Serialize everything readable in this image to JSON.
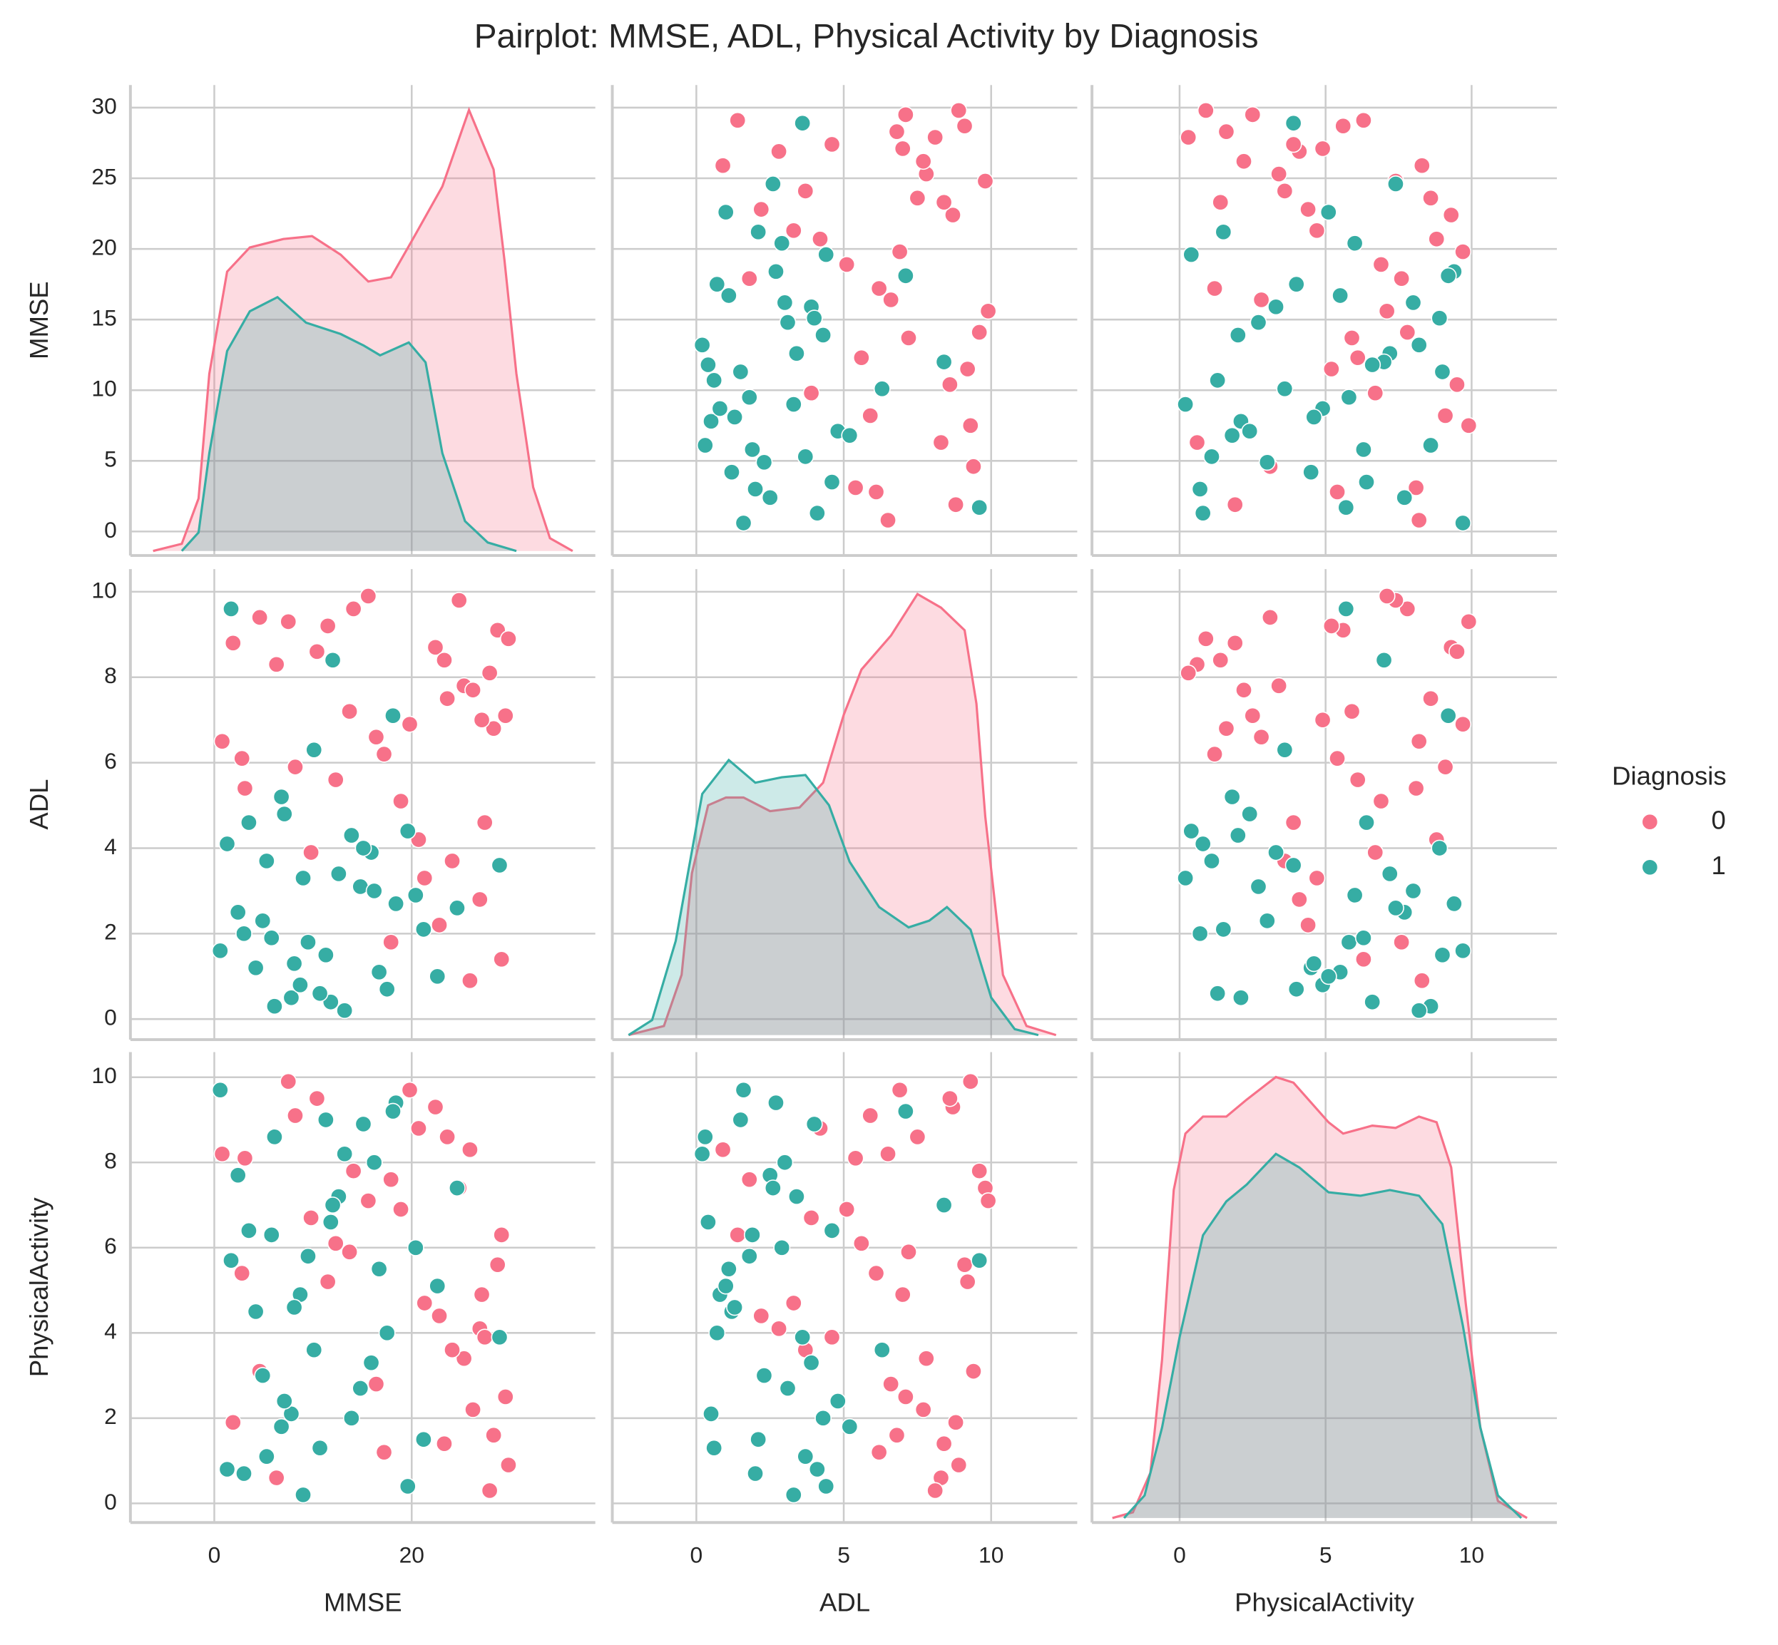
{
  "chart_data": {
    "type": "pairplot",
    "title": "Pairplot: MMSE, ADL, Physical Activity by Diagnosis",
    "grid": true,
    "legend": "right",
    "hue": {
      "title": "Diagnosis",
      "levels": [
        0,
        1
      ],
      "colors": [
        "#f77189",
        "#36ada4"
      ],
      "values": [
        0,
        0,
        0,
        0,
        0,
        0,
        0,
        0,
        0,
        0,
        0,
        0,
        0,
        0,
        0,
        0,
        0,
        0,
        0,
        0,
        0,
        0,
        0,
        0,
        0,
        0,
        0,
        0,
        0,
        0,
        0,
        0,
        0,
        0,
        0,
        0,
        0,
        0,
        0,
        0,
        1,
        1,
        1,
        1,
        1,
        1,
        1,
        1,
        1,
        1,
        1,
        1,
        1,
        1,
        1,
        1,
        1,
        1,
        1,
        1,
        1,
        1,
        1,
        1,
        1,
        1,
        1,
        1,
        1,
        1,
        1,
        1,
        1,
        1,
        1,
        1,
        1,
        1,
        1,
        1
      ]
    },
    "vars": [
      {
        "label": "MMSE",
        "xlim": [
          -8.5,
          38.6
        ],
        "xticks": [
          0,
          20
        ],
        "ylim": [
          -1.7,
          31.6
        ],
        "yticks": [
          0,
          5,
          10,
          15,
          20,
          25,
          30
        ],
        "values": [
          25.3,
          3.1,
          28.7,
          17.2,
          22.4,
          9.8,
          29.5,
          14.1,
          26.9,
          6.3,
          19.8,
          27.4,
          11.5,
          23.6,
          1.9,
          29.1,
          16.4,
          24.8,
          8.2,
          21.3,
          27.9,
          13.7,
          25.9,
          4.6,
          18.9,
          28.3,
          10.4,
          22.8,
          15.6,
          26.2,
          2.8,
          20.7,
          29.8,
          12.3,
          24.1,
          7.5,
          27.1,
          17.9,
          23.3,
          0.8,
          4.2,
          12.6,
          7.8,
          18.4,
          1.3,
          9.5,
          15.9,
          6.1,
          21.2,
          3.5,
          11.3,
          14.8,
          8.7,
          19.6,
          2.4,
          10.1,
          16.7,
          5.3,
          13.2,
          20.4,
          7.1,
          0.6,
          17.5,
          9.0,
          12.0,
          4.9,
          22.6,
          15.1,
          6.8,
          11.8,
          28.9,
          3.0,
          18.1,
          8.1,
          13.9,
          24.6,
          1.7,
          10.7,
          16.2,
          5.8
        ],
        "kde": [
          {
            "x": [
              -6.2,
              -3.3,
              -1.6,
              -0.5,
              1.3,
              3.6,
              7,
              9.9,
              12.8,
              15.6,
              17.9,
              20.2,
              23.1,
              25.8,
              28.3,
              29.4,
              30.6,
              32.3,
              34,
              36.3
            ],
            "density": [
              0,
              0.0005,
              0.0037,
              0.0125,
              0.0197,
              0.0214,
              0.022,
              0.0222,
              0.0209,
              0.019,
              0.0193,
              0.0221,
              0.0257,
              0.0311,
              0.0269,
              0.0205,
              0.0125,
              0.0045,
              0.0009,
              0
            ]
          },
          {
            "x": [
              -3.3,
              -1.6,
              -0.5,
              1.3,
              3.6,
              6.4,
              9.3,
              12.8,
              15.1,
              16.8,
              19.7,
              21.4,
              23.1,
              25.4,
              27.7,
              30.6
            ],
            "density": [
              0,
              0.0013,
              0.0069,
              0.0141,
              0.0169,
              0.0179,
              0.0161,
              0.0153,
              0.0145,
              0.0138,
              0.0147,
              0.0133,
              0.0069,
              0.0021,
              0.0006,
              0
            ]
          }
        ]
      },
      {
        "label": "ADL",
        "xlim": [
          -2.85,
          12.92
        ],
        "xticks": [
          0,
          5,
          10
        ],
        "ylim": [
          -0.48,
          10.53
        ],
        "yticks": [
          0,
          2,
          4,
          6,
          8,
          10
        ],
        "values": [
          7.8,
          5.4,
          9.1,
          6.2,
          8.7,
          3.9,
          7.1,
          9.6,
          2.8,
          8.3,
          6.9,
          4.6,
          9.2,
          7.5,
          8.8,
          1.4,
          6.6,
          9.8,
          5.9,
          3.3,
          8.1,
          7.2,
          0.9,
          9.4,
          5.1,
          6.8,
          8.6,
          2.2,
          9.9,
          7.7,
          6.1,
          4.2,
          8.9,
          5.6,
          3.7,
          9.3,
          7.0,
          1.8,
          8.4,
          6.5,
          1.2,
          3.4,
          0.5,
          2.7,
          4.1,
          1.8,
          3.9,
          0.3,
          2.1,
          4.6,
          1.5,
          3.1,
          0.8,
          4.4,
          2.5,
          6.3,
          1.1,
          3.7,
          0.2,
          2.9,
          4.8,
          1.6,
          0.7,
          3.3,
          8.4,
          2.3,
          1.0,
          4.0,
          5.2,
          0.4,
          3.6,
          2.0,
          7.1,
          1.3,
          4.3,
          2.6,
          9.6,
          0.6,
          3.0,
          1.9
        ],
        "kde": [
          {
            "x": [
              -2.3,
              -1.1,
              -0.5,
              -0.15,
              0.4,
              1,
              1.6,
              2.5,
              3.5,
              4.3,
              5,
              5.6,
              6.6,
              7.5,
              8.3,
              9.1,
              9.5,
              9.8,
              10.4,
              11.2,
              12.2
            ],
            "density": [
              0,
              0.002,
              0.0133,
              0.0358,
              0.0508,
              0.0525,
              0.0525,
              0.0495,
              0.0503,
              0.0558,
              0.0708,
              0.0808,
              0.0883,
              0.0975,
              0.0945,
              0.0895,
              0.0733,
              0.0483,
              0.0133,
              0.002,
              0
            ]
          },
          {
            "x": [
              -2.3,
              -1.5,
              -0.7,
              0.2,
              1.1,
              2,
              2.9,
              3.7,
              4.5,
              5.2,
              6.2,
              7.2,
              7.9,
              8.5,
              9.3,
              10,
              10.8,
              11.6
            ],
            "density": [
              0,
              0.0033,
              0.0208,
              0.0533,
              0.0608,
              0.0558,
              0.057,
              0.0575,
              0.0508,
              0.0383,
              0.0283,
              0.0238,
              0.0253,
              0.0283,
              0.0233,
              0.0083,
              0.0013,
              0
            ]
          }
        ]
      },
      {
        "label": "PhysicalActivity",
        "xlim": [
          -3.0,
          12.92
        ],
        "xticks": [
          0,
          5,
          10
        ],
        "ylim": [
          -0.45,
          10.59
        ],
        "yticks": [
          0,
          2,
          4,
          6,
          8,
          10
        ],
        "values": [
          3.4,
          8.1,
          5.6,
          1.2,
          9.3,
          6.7,
          2.5,
          7.8,
          4.1,
          0.6,
          9.7,
          3.9,
          5.2,
          8.6,
          1.9,
          6.3,
          2.8,
          7.4,
          9.1,
          4.7,
          0.3,
          5.9,
          8.3,
          3.1,
          6.9,
          1.6,
          9.5,
          4.4,
          7.1,
          2.2,
          5.4,
          8.8,
          0.9,
          6.1,
          3.6,
          9.9,
          4.9,
          7.6,
          1.4,
          8.2,
          4.5,
          7.2,
          2.1,
          9.4,
          0.8,
          5.8,
          3.3,
          8.6,
          1.5,
          6.4,
          9.0,
          2.7,
          4.9,
          0.4,
          7.7,
          3.6,
          5.5,
          1.1,
          8.2,
          6.0,
          2.4,
          9.7,
          4.0,
          0.2,
          7.0,
          3.0,
          5.1,
          8.9,
          1.8,
          6.6,
          3.9,
          0.7,
          9.2,
          4.6,
          2.0,
          7.4,
          5.7,
          1.3,
          8.0,
          6.3
        ],
        "kde": [
          {
            "x": [
              -2.3,
              -1.6,
              -1,
              -0.6,
              -0.2,
              0.2,
              0.8,
              1.6,
              2.3,
              3.3,
              3.9,
              5.1,
              5.6,
              6.6,
              7.4,
              8.2,
              8.8,
              9.3,
              9.8,
              10.3,
              10.9,
              11.9
            ],
            "density": [
              0,
              0.0015,
              0.012,
              0.042,
              0.087,
              0.102,
              0.1065,
              0.1065,
              0.111,
              0.117,
              0.1155,
              0.105,
              0.102,
              0.1041,
              0.1035,
              0.1065,
              0.105,
              0.093,
              0.057,
              0.024,
              0.0045,
              0
            ]
          },
          {
            "x": [
              -1.9,
              -1.2,
              -0.6,
              0,
              0.8,
              1.6,
              2.3,
              3.3,
              4.1,
              5.1,
              6.2,
              7.2,
              8.2,
              9,
              9.7,
              10.3,
              10.9,
              11.7
            ],
            "density": [
              0,
              0.006,
              0.024,
              0.048,
              0.075,
              0.084,
              0.0885,
              0.0966,
              0.093,
              0.0864,
              0.0855,
              0.087,
              0.0855,
              0.078,
              0.051,
              0.024,
              0.006,
              0
            ]
          }
        ]
      }
    ]
  }
}
